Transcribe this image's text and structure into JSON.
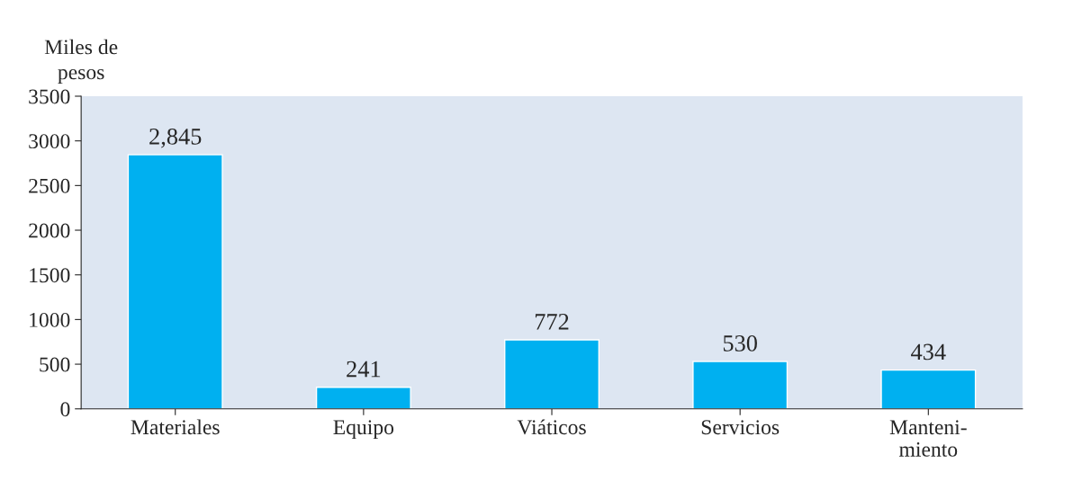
{
  "chart_data": {
    "type": "bar",
    "ylabel": "Miles de\npesos",
    "categories": [
      "Materiales",
      "Equipo",
      "Viáticos",
      "Servicios",
      "Manteni-\nmiento"
    ],
    "values": [
      2845,
      241,
      772,
      530,
      434
    ],
    "value_labels": [
      "2,845",
      "241",
      "772",
      "530",
      "434"
    ],
    "color": "#00b0f0",
    "ylim": [
      0,
      3500
    ],
    "yticks": [
      0,
      500,
      1000,
      1500,
      2000,
      2500,
      3000,
      3500
    ],
    "grid": false,
    "legend": false
  }
}
